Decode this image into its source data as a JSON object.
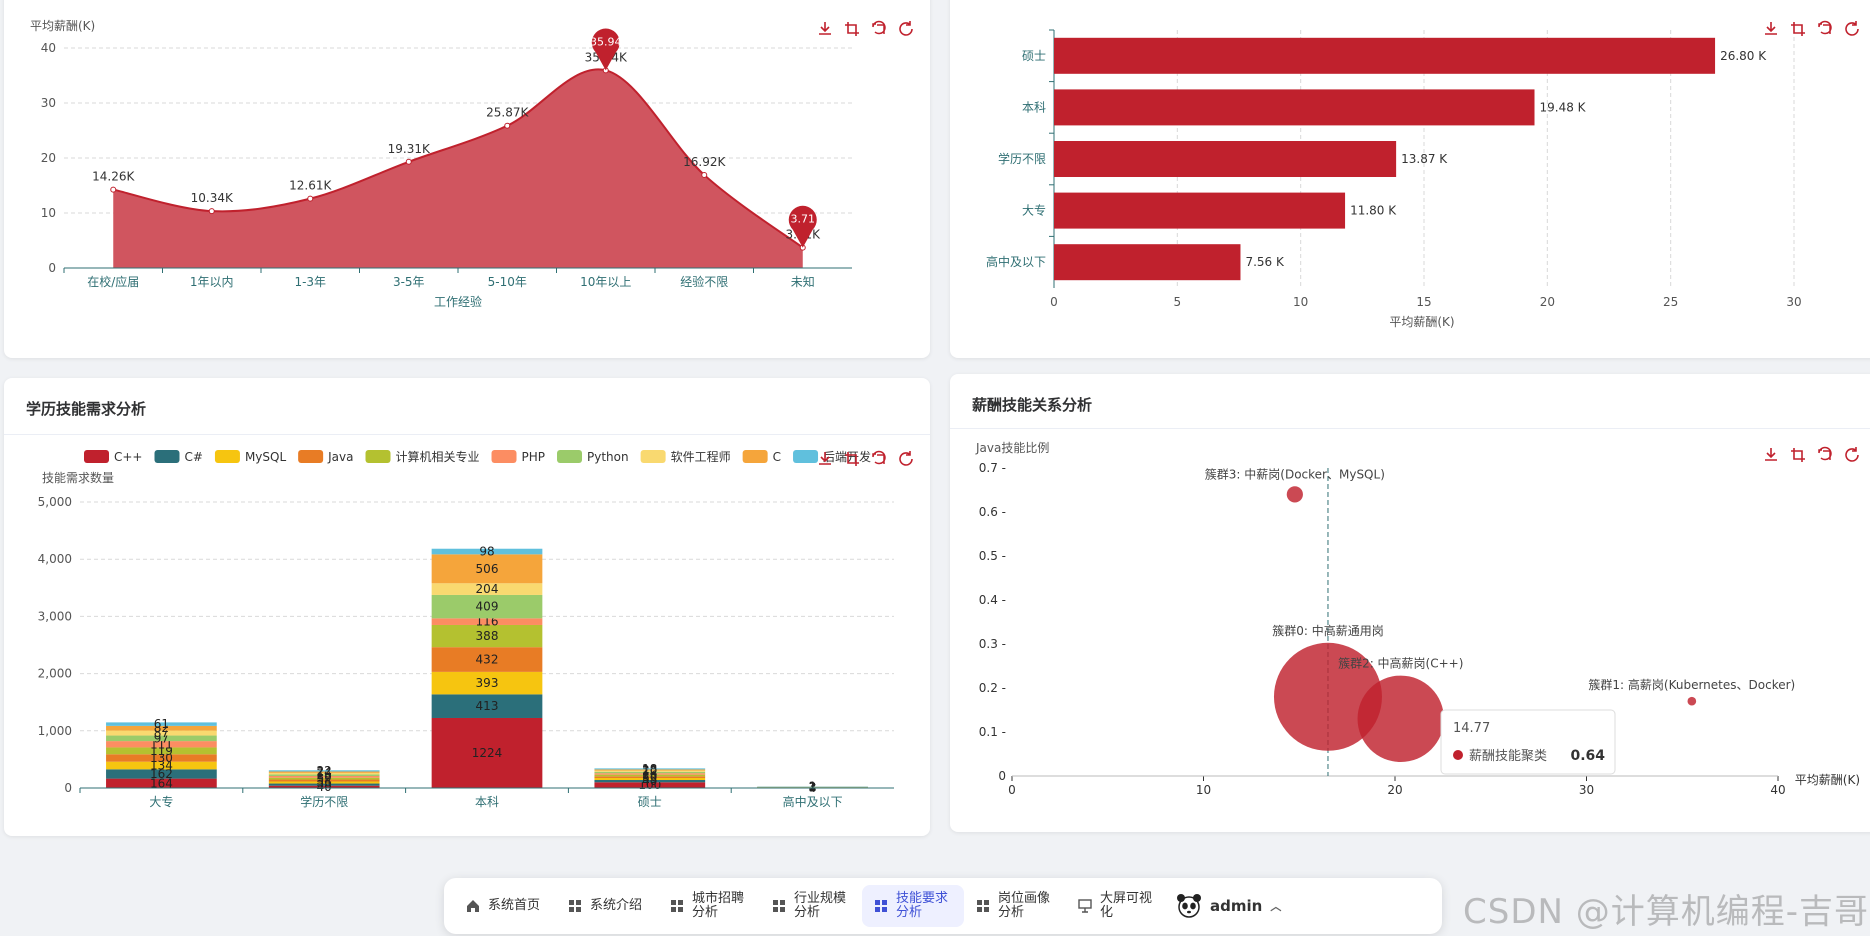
{
  "colors": {
    "accent": "#c0212d",
    "accent_area": "#d0555f",
    "grid": "#d9d9d9",
    "axis": "#2f6f73"
  },
  "toolbox_icons": [
    "download-icon",
    "data-zoom-icon",
    "restore-zoom-icon",
    "refresh-icon"
  ],
  "experience_chart": {
    "chart_data": {
      "type": "area",
      "ylabel": "平均薪酬(K)",
      "xlabel": "工作经验",
      "ylim": [
        0,
        40
      ],
      "yticks": [
        "0",
        "10",
        "20",
        "30",
        "40"
      ],
      "categories": [
        "在校/应届",
        "1年以内",
        "1-3年",
        "3-5年",
        "5-10年",
        "10年以上",
        "经验不限",
        "未知"
      ],
      "values": [
        14.26,
        10.34,
        12.61,
        19.31,
        25.87,
        35.94,
        16.92,
        3.71
      ],
      "data_labels": [
        "14.26K",
        "10.34K",
        "12.61K",
        "19.31K",
        "25.87K",
        "35.94K",
        "16.92K",
        "3.71K"
      ],
      "max_pin": "35.94",
      "min_pin": "3.71",
      "grid": true
    }
  },
  "education_salary_chart": {
    "chart_data": {
      "type": "bar",
      "orientation": "horizontal",
      "xlabel": "平均薪酬(K)",
      "xlim": [
        0,
        30
      ],
      "xticks": [
        "0",
        "5",
        "10",
        "15",
        "20",
        "25",
        "30"
      ],
      "categories": [
        "硕士",
        "本科",
        "学历不限",
        "大专",
        "高中及以下"
      ],
      "values": [
        26.8,
        19.48,
        13.87,
        11.8,
        7.56
      ],
      "data_labels": [
        "26.80 K",
        "19.48 K",
        "13.87 K",
        "11.80 K",
        "7.56 K"
      ],
      "grid": true
    }
  },
  "skills_demand_card": {
    "title": "学历技能需求分析",
    "chart_data": {
      "type": "bar",
      "stacked": true,
      "ylabel": "技能需求数量",
      "ylim": [
        0,
        5000
      ],
      "yticks": [
        "0",
        "1,000",
        "2,000",
        "3,000",
        "4,000",
        "5,000"
      ],
      "categories": [
        "大专",
        "学历不限",
        "本科",
        "硕士",
        "高中及以下"
      ],
      "legend_position": "top",
      "series": [
        {
          "name": "C++",
          "color": "#c0212d",
          "values": [
            164,
            40,
            1224,
            100,
            4
          ]
        },
        {
          "name": "C#",
          "color": "#2b6f7a",
          "values": [
            162,
            38,
            413,
            40,
            3
          ]
        },
        {
          "name": "MySQL",
          "color": "#f6c510",
          "values": [
            134,
            36,
            393,
            35,
            3
          ]
        },
        {
          "name": "Java",
          "color": "#e87c25",
          "values": [
            130,
            34,
            432,
            30,
            3
          ]
        },
        {
          "name": "计算机相关专业",
          "color": "#b4c130",
          "values": [
            119,
            32,
            388,
            28,
            2
          ]
        },
        {
          "name": "PHP",
          "color": "#fc8d62",
          "values": [
            111,
            30,
            116,
            26,
            2
          ]
        },
        {
          "name": "Python",
          "color": "#9bcb6a",
          "values": [
            97,
            28,
            409,
            24,
            2
          ]
        },
        {
          "name": "软件工程师",
          "color": "#f9d970",
          "values": [
            87,
            26,
            204,
            22,
            2
          ]
        },
        {
          "name": "C",
          "color": "#f5a53b",
          "values": [
            82,
            24,
            506,
            20,
            1
          ]
        },
        {
          "name": "后端开发",
          "color": "#60c0dd",
          "values": [
            61,
            22,
            98,
            18,
            1
          ]
        }
      ],
      "grid": true
    }
  },
  "salary_skill_card": {
    "title": "薪酬技能关系分析",
    "chart_data": {
      "type": "scatter",
      "ylabel": "Java技能比例",
      "xlabel": "平均薪酬(K)",
      "xlim": [
        0,
        40
      ],
      "ylim": [
        0,
        0.7
      ],
      "xticks": [
        "0",
        "10",
        "20",
        "30",
        "40"
      ],
      "yticks": [
        "0",
        "0.1 -",
        "0.2 -",
        "0.3 -",
        "0.4 -",
        "0.5 -",
        "0.6 -",
        "0.7 -"
      ],
      "mark_line_x": 16.5,
      "points": [
        {
          "label": "簇群3: 中薪岗(Docker、MySQL)",
          "x": 14.77,
          "y": 0.64,
          "size": 0.15
        },
        {
          "label": "簇群0: 中高薪通用岗",
          "x": 16.5,
          "y": 0.18,
          "size": 1.0
        },
        {
          "label": "簇群2: 中高薪岗(C++)",
          "x": 20.3,
          "y": 0.13,
          "size": 0.8
        },
        {
          "label": "簇群1: 高薪岗(Kubernetes、Docker)",
          "x": 35.5,
          "y": 0.17,
          "size": 0.08
        }
      ],
      "tooltip": {
        "title": "14.77",
        "series_name": "薪酬技能聚类",
        "value": "0.64"
      }
    }
  },
  "dock": {
    "items": [
      {
        "label": "系统首页",
        "icon": "home-icon",
        "active": false
      },
      {
        "label": "系统介绍",
        "icon": "grid-icon",
        "active": false
      },
      {
        "label": "城市招聘分析",
        "icon": "grid-icon",
        "active": false
      },
      {
        "label": "行业规模分析",
        "icon": "grid-icon",
        "active": false
      },
      {
        "label": "技能要求分析",
        "icon": "grid-icon",
        "active": true
      },
      {
        "label": "岗位画像分析",
        "icon": "grid-icon",
        "active": false
      },
      {
        "label": "大屏可视化",
        "icon": "presentation-icon",
        "active": false
      }
    ],
    "user": "admin"
  },
  "watermark": "CSDN @计算机编程-吉哥"
}
